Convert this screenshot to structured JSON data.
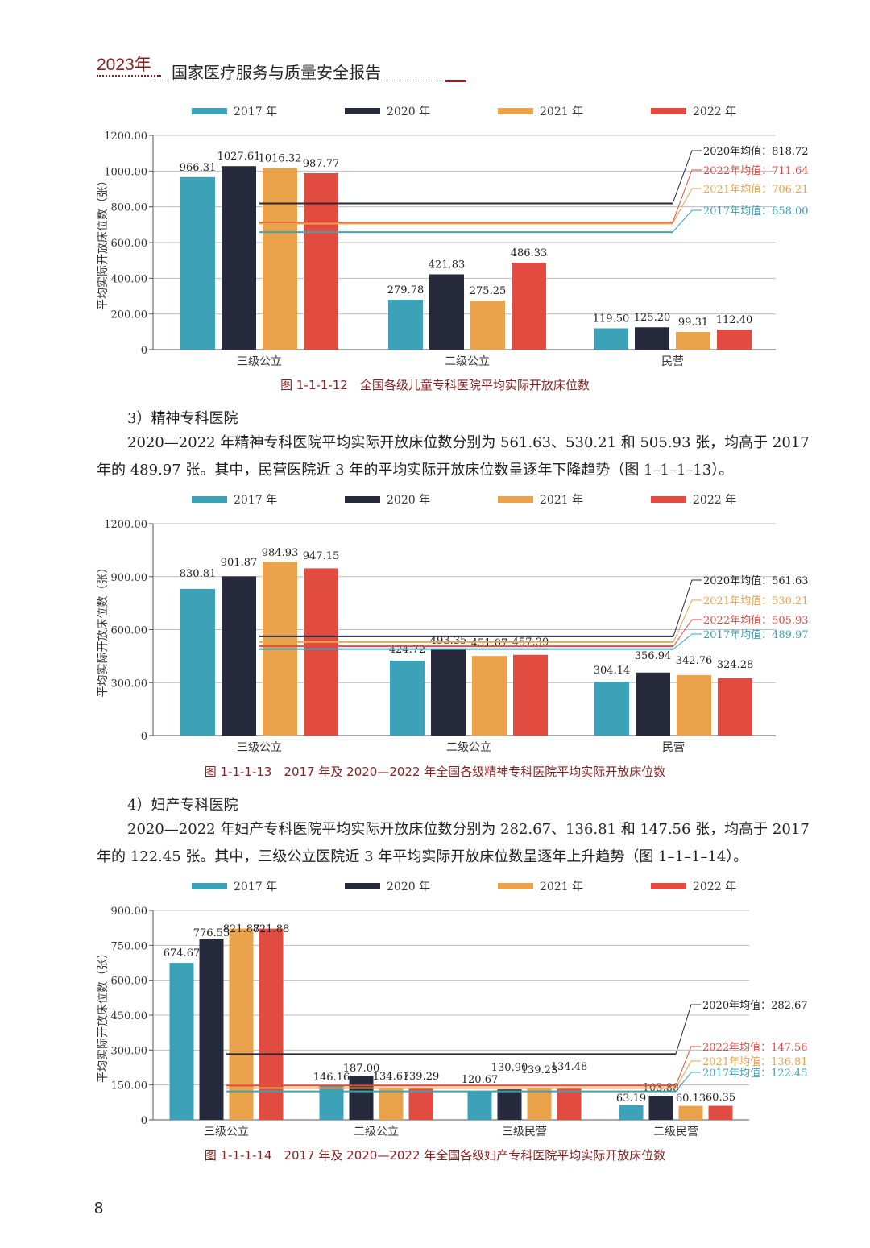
{
  "header": {
    "year": "2023年",
    "title": "国家医疗服务与质量安全报告"
  },
  "charts": [
    {
      "caption": "图 1-1-1-12　全国各级儿童专科医院平均实际开放床位数",
      "ylabel": "平均实际开放床位数（张）",
      "legend": [
        "2017 年",
        "2020 年",
        "2021 年",
        "2022 年"
      ],
      "colors": [
        "#3ba2b7",
        "#262a3c",
        "#eaa34b",
        "#e24b40"
      ],
      "ylim": [
        0,
        1200
      ],
      "yticks": [
        "0",
        "200.00",
        "400.00",
        "600.00",
        "800.00",
        "1000.00",
        "1200.00"
      ],
      "ytick_values": [
        0,
        200,
        400,
        600,
        800,
        1000,
        1200
      ],
      "categories": [
        "三级公立",
        "二级公立",
        "民营"
      ],
      "series": [
        {
          "name": "2017 年",
          "values": [
            966.31,
            279.78,
            119.5
          ]
        },
        {
          "name": "2020 年",
          "values": [
            1027.61,
            421.83,
            125.2
          ]
        },
        {
          "name": "2021 年",
          "values": [
            1016.32,
            275.25,
            99.31
          ]
        },
        {
          "name": "2022 年",
          "values": [
            987.77,
            486.33,
            112.4
          ]
        }
      ],
      "value_labels": [
        [
          "966.31",
          "1027.61",
          "1016.32",
          "987.77"
        ],
        [
          "279.78",
          "421.83",
          "275.25",
          "486.33"
        ],
        [
          "119.50",
          "125.20",
          "99.31",
          "112.40"
        ]
      ],
      "averages": [
        {
          "series": 1,
          "value": 818.72,
          "label": "2020年均值：818.72"
        },
        {
          "series": 3,
          "value": 711.64,
          "label": "2022年均值：711.64"
        },
        {
          "series": 2,
          "value": 706.21,
          "label": "2021年均值：706.21"
        },
        {
          "series": 0,
          "value": 658.0,
          "label": "2017年均值：658.00"
        }
      ]
    },
    {
      "caption": "图 1-1-1-13　2017 年及 2020—2022 年全国各级精神专科医院平均实际开放床位数",
      "ylabel": "平均实际开放床位数（张）",
      "legend": [
        "2017 年",
        "2020 年",
        "2021 年",
        "2022 年"
      ],
      "colors": [
        "#3ba2b7",
        "#262a3c",
        "#eaa34b",
        "#e24b40"
      ],
      "ylim": [
        0,
        1200
      ],
      "yticks": [
        "0",
        "300.00",
        "600.00",
        "900.00",
        "1200.00"
      ],
      "ytick_values": [
        0,
        300,
        600,
        900,
        1200
      ],
      "categories": [
        "三级公立",
        "二级公立",
        "民营"
      ],
      "series": [
        {
          "name": "2017 年",
          "values": [
            830.81,
            424.72,
            304.14
          ]
        },
        {
          "name": "2020 年",
          "values": [
            901.87,
            493.35,
            356.94
          ]
        },
        {
          "name": "2021 年",
          "values": [
            984.93,
            451.07,
            342.76
          ]
        },
        {
          "name": "2022 年",
          "values": [
            947.15,
            457.39,
            324.28
          ]
        }
      ],
      "value_labels": [
        [
          "830.81",
          "901.87",
          "984.93",
          "947.15"
        ],
        [
          "424.72",
          "493.35",
          "451.07",
          "457.39"
        ],
        [
          "304.14",
          "356.94",
          "342.76",
          "324.28"
        ]
      ],
      "averages": [
        {
          "series": 1,
          "value": 561.63,
          "label": "2020年均值：561.63"
        },
        {
          "series": 2,
          "value": 530.21,
          "label": "2021年均值：530.21"
        },
        {
          "series": 3,
          "value": 505.93,
          "label": "2022年均值：505.93"
        },
        {
          "series": 0,
          "value": 489.97,
          "label": "2017年均值：489.97"
        }
      ]
    },
    {
      "caption": "图 1-1-1-14　2017 年及 2020—2022 年全国各级妇产专科医院平均实际开放床位数",
      "ylabel": "平均实际开放床位数（张）",
      "legend": [
        "2017 年",
        "2020 年",
        "2021 年",
        "2022 年"
      ],
      "colors": [
        "#3ba2b7",
        "#262a3c",
        "#eaa34b",
        "#e24b40"
      ],
      "ylim": [
        0,
        900
      ],
      "yticks": [
        "0",
        "150.00",
        "300.00",
        "450.00",
        "600.00",
        "750.00",
        "900.00"
      ],
      "ytick_values": [
        0,
        150,
        300,
        450,
        600,
        750,
        900
      ],
      "categories": [
        "三级公立",
        "二级公立",
        "三级民营",
        "二级民营"
      ],
      "series": [
        {
          "name": "2017 年",
          "values": [
            674.67,
            146.16,
            120.67,
            63.19
          ]
        },
        {
          "name": "2020 年",
          "values": [
            776.55,
            187.0,
            130.9,
            103.88
          ]
        },
        {
          "name": "2021 年",
          "values": [
            821.87,
            134.67,
            139.23,
            60.13
          ]
        },
        {
          "name": "2022 年",
          "values": [
            821.88,
            139.29,
            134.48,
            60.35
          ]
        }
      ],
      "value_labels": [
        [
          "674.67",
          "776.55",
          "821.87",
          "821.88"
        ],
        [
          "146.16",
          "187.00",
          "134.67",
          "139.29"
        ],
        [
          "120.67",
          "130.90",
          "139.23",
          "134.48"
        ],
        [
          "63.19",
          "103.88",
          "60.13",
          "60.35"
        ]
      ],
      "averages": [
        {
          "series": 1,
          "value": 282.67,
          "label": "2020年均值：282.67"
        },
        {
          "series": 3,
          "value": 147.56,
          "label": "2022年均值：147.56"
        },
        {
          "series": 2,
          "value": 136.81,
          "label": "2021年均值：136.81"
        },
        {
          "series": 0,
          "value": 122.45,
          "label": "2017年均值：122.45"
        }
      ]
    }
  ],
  "sections": [
    {
      "heading": "3）精神专科医院",
      "paragraph": "2020—2022 年精神专科医院平均实际开放床位数分别为 561.63、530.21 和 505.93 张，均高于 2017 年的 489.97 张。其中，民营医院近 3 年的平均实际开放床位数呈逐年下降趋势（图 1–1–1–13）。"
    },
    {
      "heading": "4）妇产专科医院",
      "paragraph": "2020—2022 年妇产专科医院平均实际开放床位数分别为 282.67、136.81 和 147.56 张，均高于 2017 年的 122.45 张。其中，三级公立医院近 3 年平均实际开放床位数呈逐年上升趋势（图 1–1–1–14）。"
    }
  ],
  "page_number": "8"
}
